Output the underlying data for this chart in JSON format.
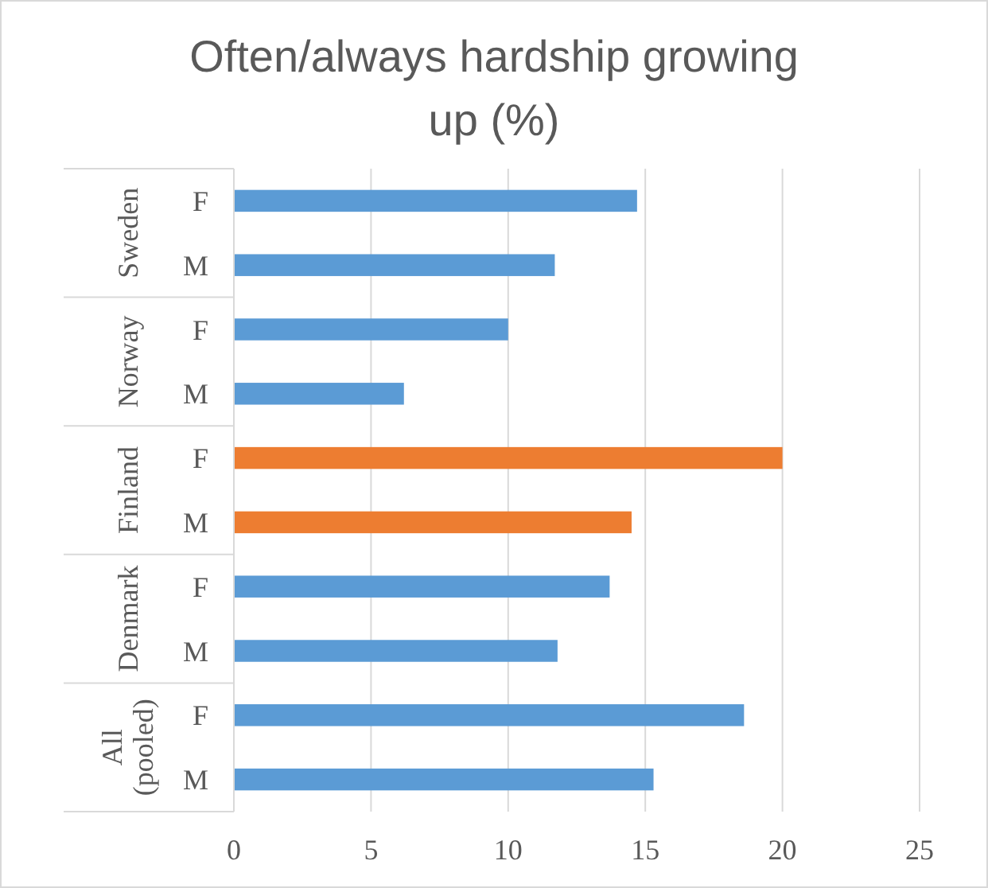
{
  "chart_data": {
    "type": "bar",
    "orientation": "horizontal",
    "title": "Often/always hardship growing up (%)",
    "categories": [
      "F",
      "M",
      "F",
      "M",
      "F",
      "M",
      "F",
      "M",
      "F",
      "M"
    ],
    "annotations": [
      "Sweden",
      "Norway",
      "Finland",
      "Denmark",
      "All (pooled)"
    ],
    "values": [
      14.7,
      11.7,
      10.0,
      6.2,
      20.0,
      14.5,
      13.7,
      11.8,
      18.6,
      15.3
    ],
    "colors": [
      "#5b9bd5",
      "#5b9bd5",
      "#5b9bd5",
      "#5b9bd5",
      "#ed7d31",
      "#ed7d31",
      "#5b9bd5",
      "#5b9bd5",
      "#5b9bd5",
      "#5b9bd5"
    ],
    "xlim": [
      0,
      25
    ],
    "xticks": [
      0,
      5,
      10,
      15,
      20,
      25
    ],
    "grid": "x"
  }
}
